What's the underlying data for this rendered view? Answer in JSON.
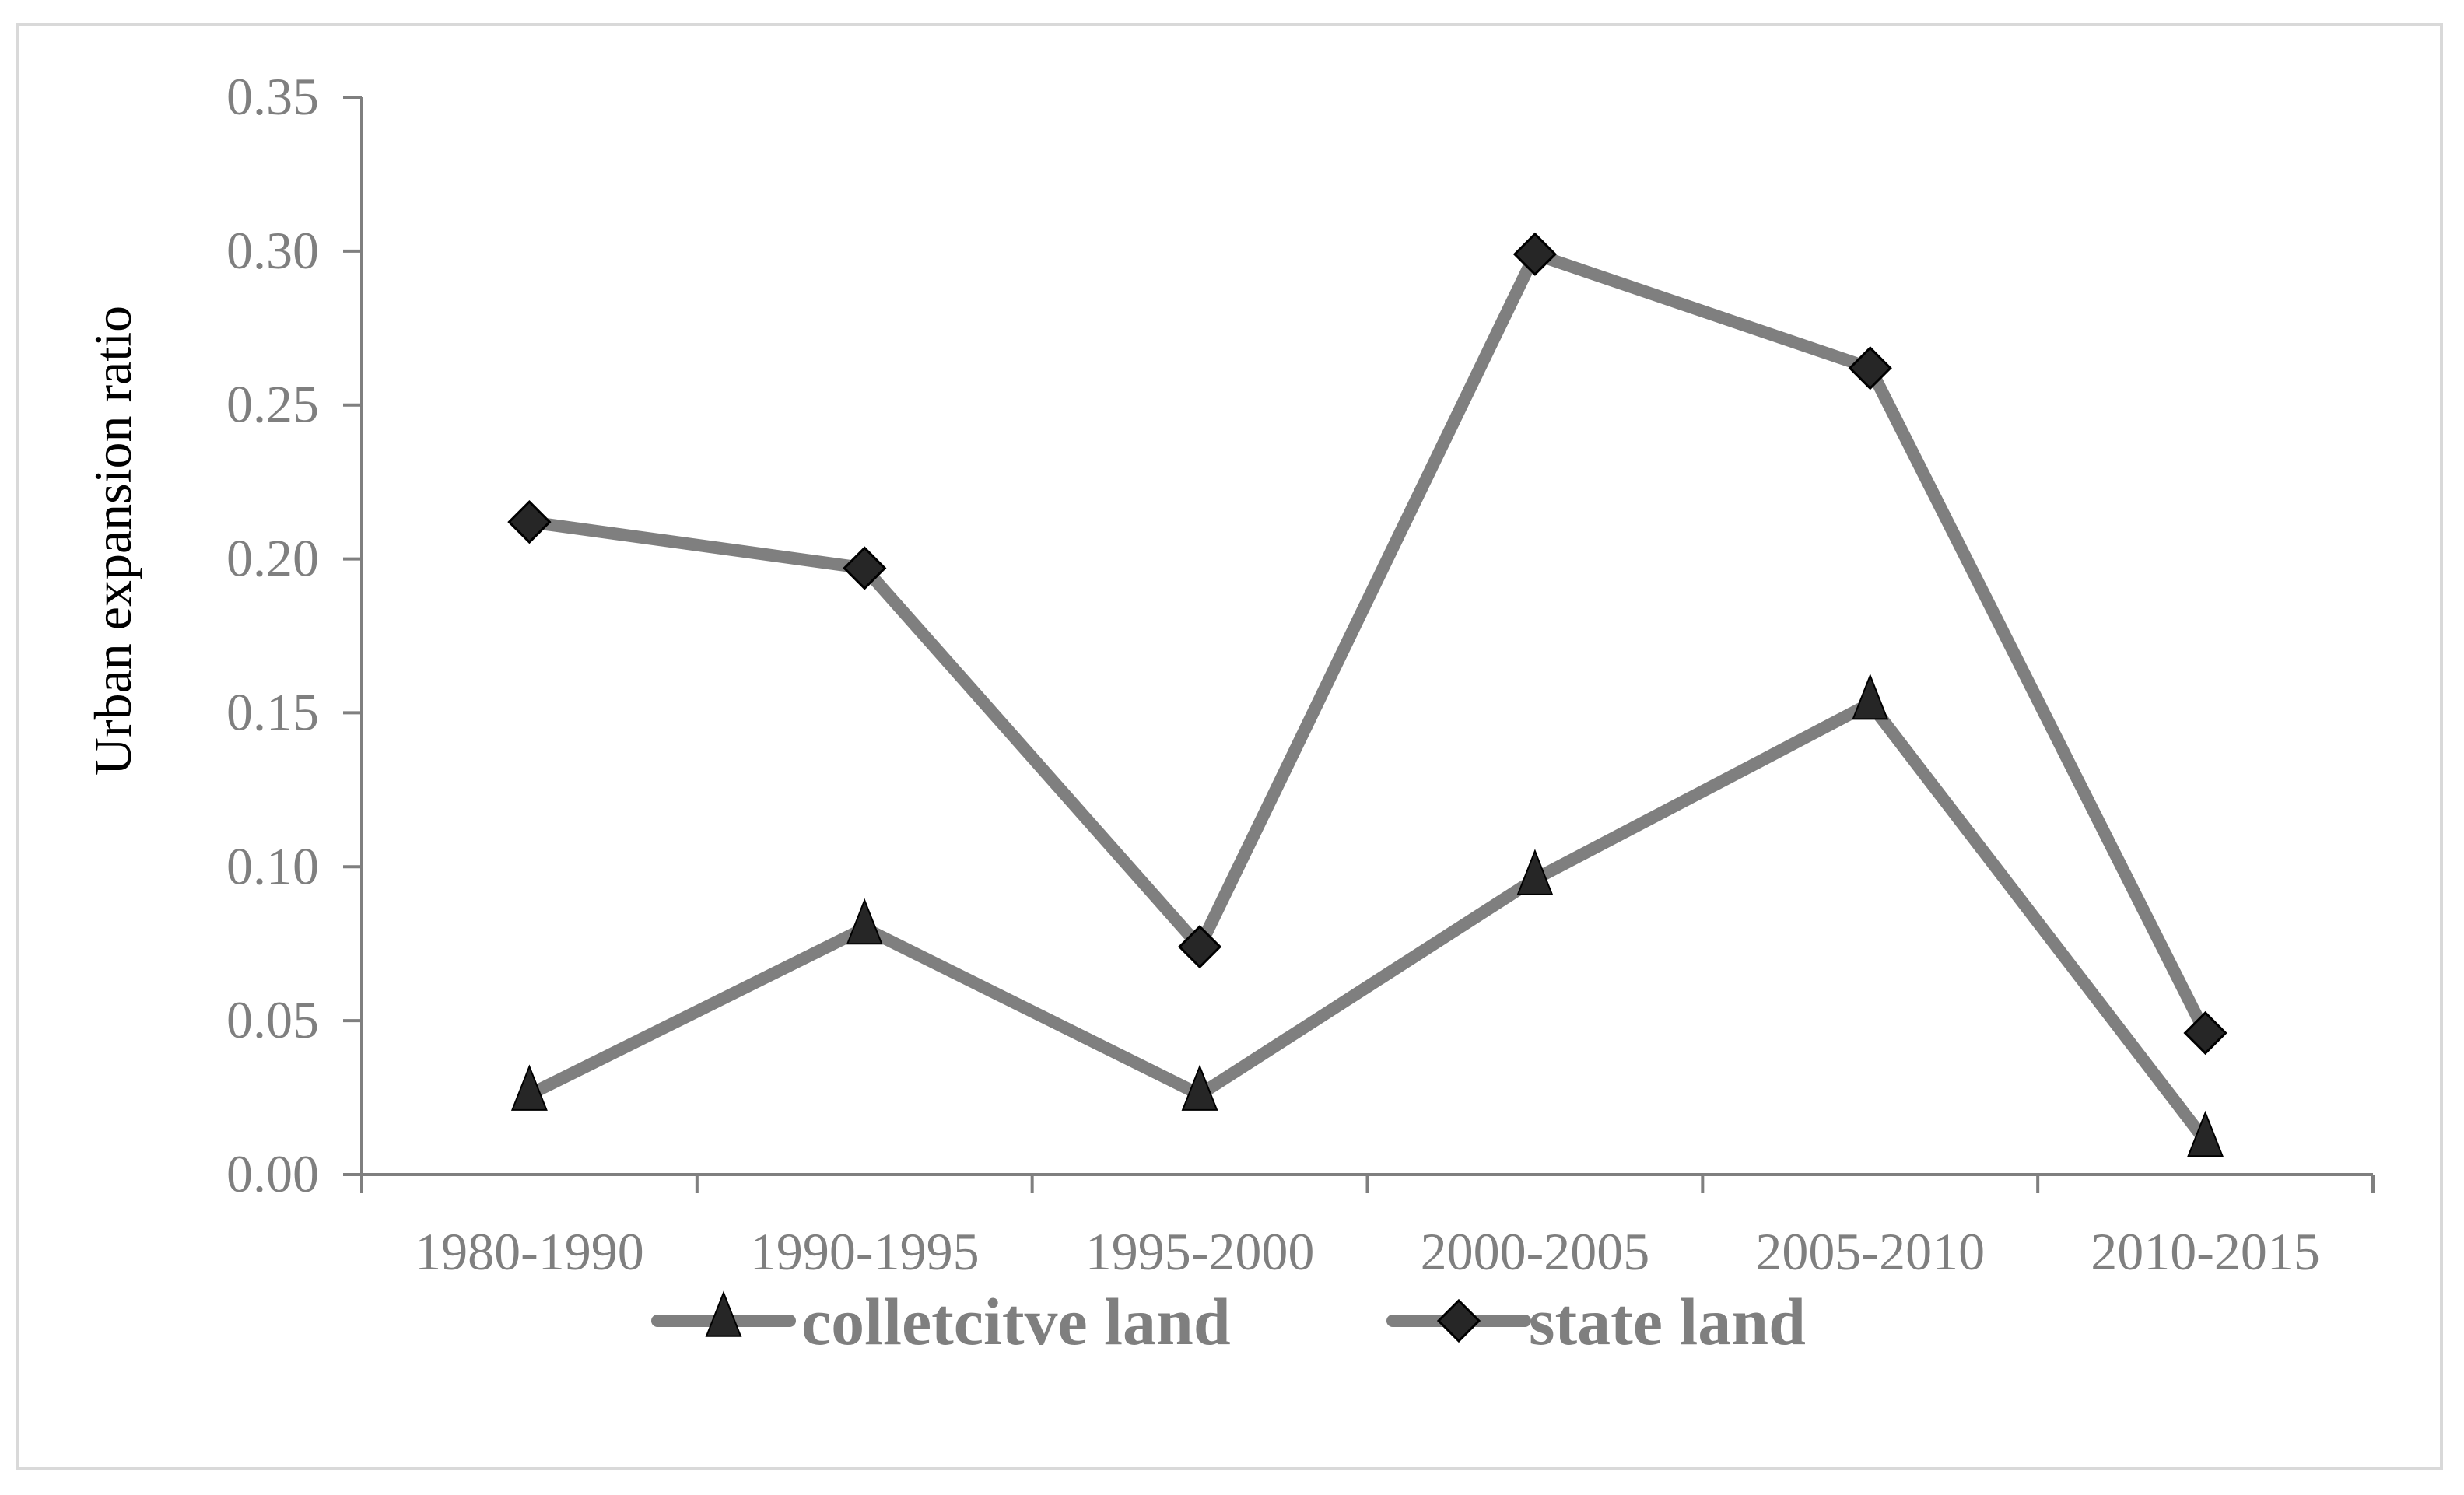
{
  "chart_data": {
    "type": "line",
    "title": "",
    "xlabel": "",
    "ylabel": "Urban expansion ratio",
    "categories": [
      "1980-1990",
      "1990-1995",
      "1995-2000",
      "2000-2005",
      "2005-2010",
      "2010-2015"
    ],
    "y_ticks": [
      "0.00",
      "0.05",
      "0.10",
      "0.15",
      "0.20",
      "0.25",
      "0.30",
      "0.35"
    ],
    "ylim": [
      0,
      0.35
    ],
    "grid": false,
    "legend_position": "bottom",
    "series": [
      {
        "name": "colletcitve land",
        "marker": "triangle",
        "color": "#7f7f7f",
        "values": [
          0.026,
          0.08,
          0.026,
          0.096,
          0.153,
          0.011
        ]
      },
      {
        "name": "state land",
        "marker": "diamond",
        "color": "#7f7f7f",
        "values": [
          0.212,
          0.197,
          0.074,
          0.299,
          0.262,
          0.046
        ]
      }
    ]
  },
  "colors": {
    "line": "#7f7f7f",
    "marker": "#262626",
    "axis": "#7f7f7f",
    "text": "#7f7f7f"
  }
}
